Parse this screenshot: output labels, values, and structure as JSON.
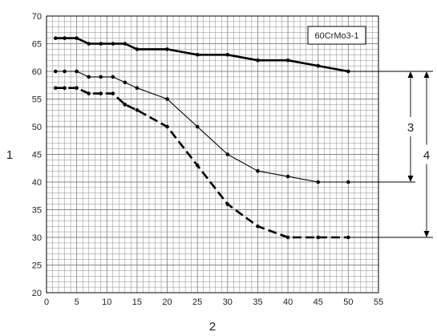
{
  "chart_data": {
    "type": "line",
    "title": "",
    "xlabel": "2",
    "ylabel": "1",
    "xlim": [
      0,
      55
    ],
    "ylim": [
      20,
      70
    ],
    "x_ticks": [
      0,
      5,
      10,
      15,
      20,
      25,
      30,
      35,
      40,
      45,
      50,
      55
    ],
    "y_ticks": [
      20,
      25,
      30,
      35,
      40,
      45,
      50,
      55,
      60,
      65,
      70
    ],
    "grid": true,
    "minor_grid_step": 1,
    "legend_box": "60CrMo3-1",
    "legend_position": "top-right",
    "series": [
      {
        "style": "thick-solid",
        "x": [
          1.5,
          3,
          5,
          7,
          9,
          11,
          13,
          15,
          20,
          25,
          30,
          35,
          40,
          45,
          50
        ],
        "y": [
          66,
          66,
          66,
          65,
          65,
          65,
          65,
          64,
          64,
          63,
          63,
          62,
          62,
          61,
          60
        ]
      },
      {
        "style": "thin-solid",
        "x": [
          1.5,
          3,
          5,
          7,
          9,
          11,
          13,
          15,
          20,
          25,
          30,
          35,
          40,
          45,
          50
        ],
        "y": [
          60,
          60,
          60,
          59,
          59,
          59,
          58,
          57,
          55,
          50,
          45,
          42,
          41,
          40,
          40
        ]
      },
      {
        "style": "thick-dashed",
        "x": [
          1.5,
          3,
          5,
          7,
          9,
          11,
          13,
          15,
          20,
          25,
          30,
          35,
          40,
          45,
          50
        ],
        "y": [
          57,
          57,
          57,
          56,
          56,
          56,
          54,
          53,
          50,
          43,
          36,
          32,
          30,
          30,
          30
        ]
      }
    ],
    "annotations": [
      {
        "label": "3",
        "from": 60,
        "to": 40
      },
      {
        "label": "4",
        "from": 60,
        "to": 30
      }
    ]
  },
  "colors": {
    "grid": "#8a8a8a",
    "axis": "#000000",
    "line": "#000000"
  }
}
